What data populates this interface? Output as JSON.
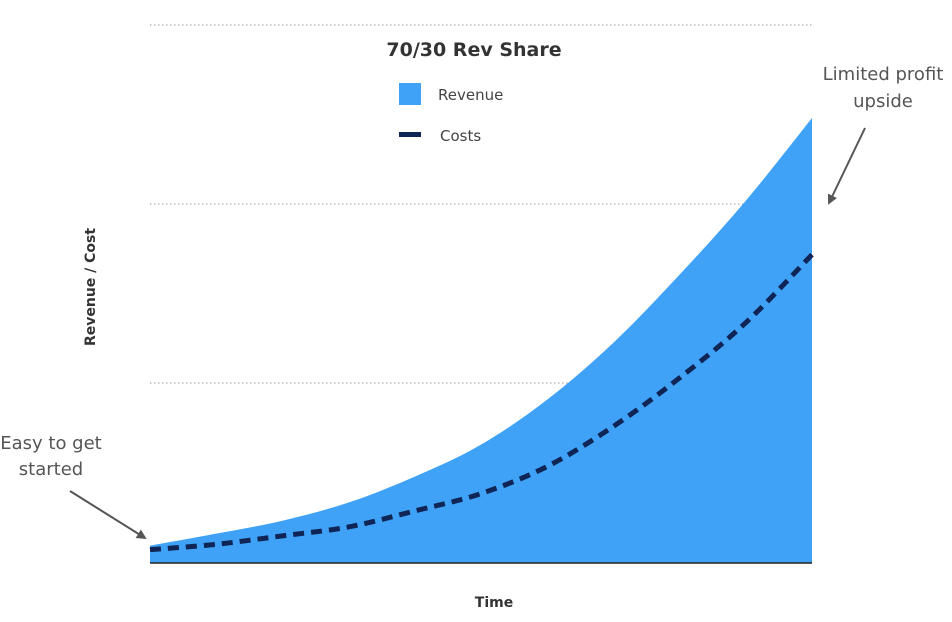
{
  "chart_data": {
    "type": "area",
    "title": "70/30 Rev Share",
    "xlabel": "Time",
    "ylabel": "Revenue / Cost",
    "x_ticks_shown": false,
    "y_ticks_shown": false,
    "grid": "horizontal dotted",
    "legend_position": "top-center",
    "xlim": [
      0,
      10
    ],
    "ylim": [
      0,
      100
    ],
    "series": [
      {
        "name": "Revenue",
        "style": "area",
        "color": "#3fa2f7",
        "x": [
          0,
          1,
          2,
          3,
          4,
          5,
          6,
          7,
          8,
          9,
          10
        ],
        "y": [
          3.9,
          6.6,
          9.5,
          13.6,
          19.4,
          26.6,
          36.7,
          49.5,
          64.8,
          81.4,
          100
        ]
      },
      {
        "name": "Costs",
        "style": "dashed-line",
        "color": "#0f2555",
        "x": [
          0,
          1,
          2,
          3,
          4,
          5,
          6,
          7,
          8,
          9,
          10
        ],
        "y": [
          3.0,
          4.2,
          6.1,
          8.1,
          11.7,
          15.6,
          21.7,
          30.7,
          41.6,
          54.0,
          69.3
        ]
      }
    ],
    "annotations": [
      {
        "text_lines": [
          "Limited profit",
          "upside"
        ],
        "points_to": "right end of revenue area"
      },
      {
        "text_lines": [
          "Easy to get",
          "started"
        ],
        "points_to": "left start of curves"
      }
    ]
  }
}
